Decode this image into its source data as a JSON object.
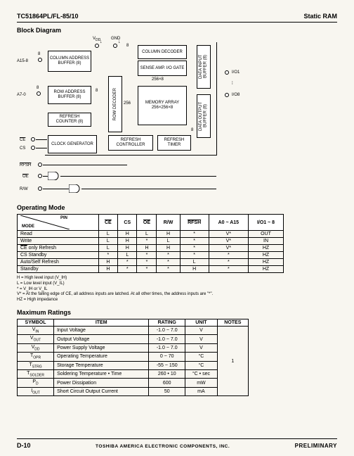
{
  "header": {
    "part": "TC51864PL/FL-85/10",
    "title": "Static RAM"
  },
  "sections": {
    "block": "Block Diagram",
    "mode": "Operating Mode",
    "max": "Maximum Ratings"
  },
  "diagram": {
    "vdd": "V_DD",
    "gnd": "GND",
    "a15": "A15-8",
    "a7": "A7-0",
    "col_addr": "COLUMN ADDRESS BUFFER (8)",
    "row_addr": "ROW ADDRESS BUFFER (8)",
    "refresh_cnt": "REFRESH COUNTER (8)",
    "clock_gen": "CLOCK GENERATOR",
    "row_dec": "ROW DECODER",
    "col_dec": "COLUMN DECODER",
    "sense": "SENSE AMP. I/O GATE",
    "mem": "MEMORY ARRAY 256×256×8",
    "refresh_ctrl": "REFRESH CONTROLLER",
    "refresh_tmr": "REFRESH TIMER",
    "din": "DATA INPUT BUFFER (8)",
    "dout": "DATA OUTPUT BUFFER (8)",
    "n8a": "8",
    "n8b": "8",
    "n8c": "8",
    "n8d": "8",
    "n8e": "8",
    "n256": "256",
    "n256x8": "256×8",
    "io1": "I/O1",
    "io_mid": "⁞",
    "io8": "I/O8",
    "ce": "CE",
    "cs": "CS",
    "rfsh": "RFSH",
    "oe": "OE",
    "rw": "R/W"
  },
  "mode_table": {
    "headers": [
      "PIN",
      "CE",
      "CS",
      "OE",
      "R/W",
      "RFSH",
      "A0 ~ A15",
      "I/O1 ~ 8"
    ],
    "mode_label": "MODE",
    "rows": [
      [
        "Read",
        "L",
        "H",
        "L",
        "H",
        "*",
        "V*",
        "OUT"
      ],
      [
        "Write",
        "L",
        "H",
        "*",
        "L",
        "*",
        "V*",
        "IN"
      ],
      [
        "CE only Refresh",
        "L",
        "H",
        "H",
        "H",
        "*",
        "V*",
        "HZ"
      ],
      [
        "CS Standby",
        "*",
        "L",
        "*",
        "*",
        "*",
        "*",
        "HZ"
      ],
      [
        "Auto/Self Refresh",
        "H",
        "*",
        "*",
        "*",
        "L",
        "*",
        "HZ"
      ],
      [
        "Standby",
        "H",
        "*",
        "*",
        "*",
        "H",
        "*",
        "HZ"
      ]
    ]
  },
  "notes": {
    "h": "H = High level input (V_IH)",
    "l": "L = Low level input (V_IL)",
    "star": "* = V_IH or V_IL",
    "vstar": "V* = At the falling edge of CE, all address inputs are latched. At all other times, the address inputs are \"*\".",
    "hz": "HZ = High impedance"
  },
  "max_table": {
    "headers": [
      "SYMBOL",
      "ITEM",
      "RATING",
      "UNIT",
      "NOTES"
    ],
    "rows": [
      [
        "V_IN",
        "Input Voltage",
        "-1.0 ~ 7.0",
        "V",
        ""
      ],
      [
        "V_OUT",
        "Output Voltage",
        "-1.0 ~ 7.0",
        "V",
        ""
      ],
      [
        "V_DD",
        "Power Supply Voltage",
        "-1.0 ~ 7.0",
        "V",
        ""
      ],
      [
        "T_OPR",
        "Operating Temperature",
        "0 ~ 70",
        "°C",
        ""
      ],
      [
        "T_STRG",
        "Storage Temperature",
        "-55 ~ 150",
        "°C",
        ""
      ],
      [
        "T_SOLDER",
        "Soldering Temperature • Time",
        "260 • 10",
        "°C • sec",
        ""
      ],
      [
        "P_D",
        "Power Dissipation",
        "600",
        "mW",
        ""
      ],
      [
        "I_OUT",
        "Short Circuit Output Current",
        "50",
        "mA",
        ""
      ]
    ],
    "notes_span": "1"
  },
  "footer": {
    "page": "D-10",
    "company": "TOSHIBA AMERICA ELECTRONIC COMPONENTS, INC.",
    "prelim": "PRELIMINARY"
  }
}
